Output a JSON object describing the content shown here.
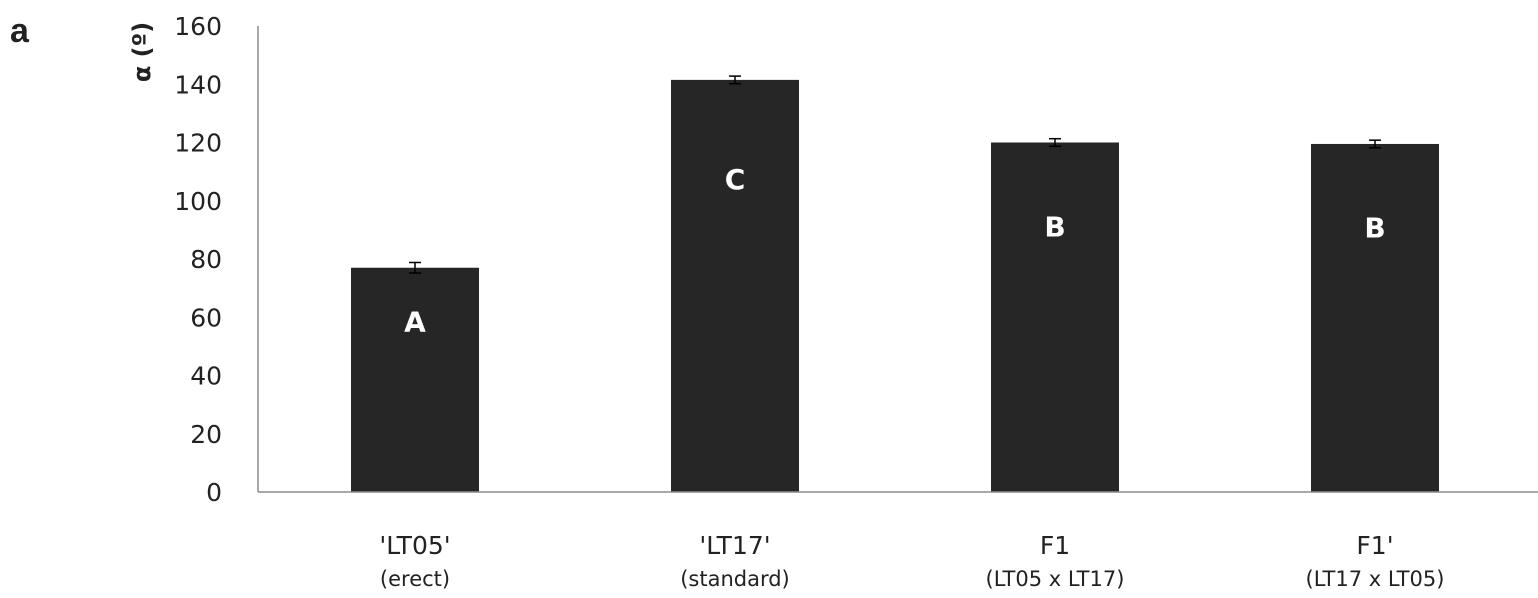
{
  "panel_label": "a",
  "colors": {
    "bar": "#262626",
    "axis": "#8c8c8c",
    "text": "#222222",
    "letter": "#ffffff"
  },
  "chart_data": {
    "type": "bar",
    "ylabel": "α (º)",
    "ylim": [
      0,
      160
    ],
    "yticks": [
      0,
      20,
      40,
      60,
      80,
      100,
      120,
      140,
      160
    ],
    "categories": [
      "'LT05'",
      "'LT17'",
      "F1",
      "F1'"
    ],
    "category_sublabels": [
      "(erect)",
      "(standard)",
      "(LT05 x LT17)",
      "(LT17 x LT05)"
    ],
    "values": [
      77,
      141.5,
      120,
      119.5
    ],
    "errors": [
      1.8,
      1.3,
      1.3,
      1.3
    ],
    "significance_letters": [
      "A",
      "C",
      "B",
      "B"
    ],
    "grid": false
  }
}
